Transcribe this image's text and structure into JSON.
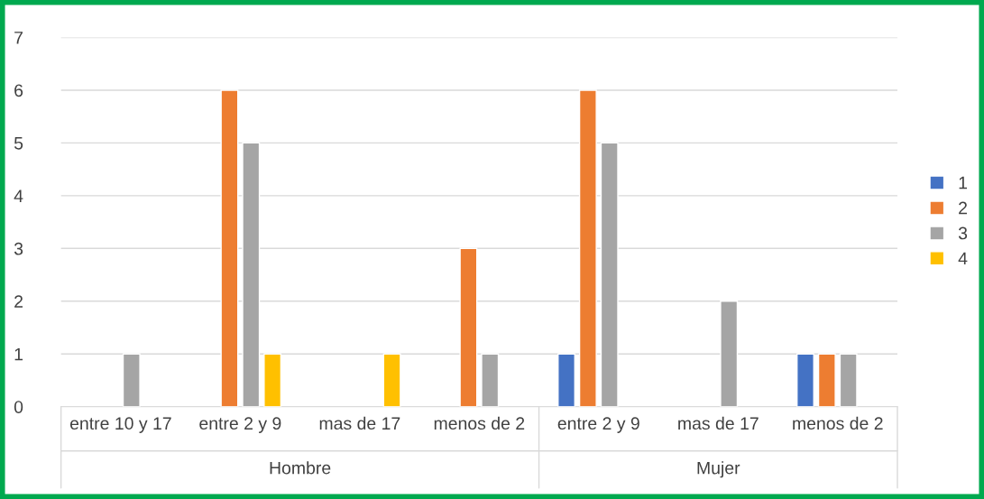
{
  "chart_data": {
    "type": "bar",
    "categories": [
      "entre 10 y 17",
      "entre 2 y 9",
      "mas de 17",
      "menos de 2",
      "entre 2 y 9",
      "mas de 17",
      "menos de 2"
    ],
    "series": [
      {
        "name": "1",
        "color": "#4472c4",
        "values": [
          null,
          null,
          null,
          null,
          1,
          null,
          1
        ]
      },
      {
        "name": "2",
        "color": "#ed7d31",
        "values": [
          null,
          6,
          null,
          3,
          6,
          null,
          1
        ]
      },
      {
        "name": "3",
        "color": "#a5a5a5",
        "values": [
          1,
          5,
          null,
          1,
          5,
          2,
          1
        ]
      },
      {
        "name": "4",
        "color": "#ffc000",
        "values": [
          null,
          1,
          1,
          null,
          null,
          null,
          null
        ]
      }
    ],
    "annotations": [
      "Hombre",
      "Mujer"
    ],
    "ylim": [
      0,
      7
    ],
    "yticks": [
      0,
      1,
      2,
      3,
      4,
      5,
      6,
      7
    ],
    "grid": "y",
    "legend": "right"
  }
}
